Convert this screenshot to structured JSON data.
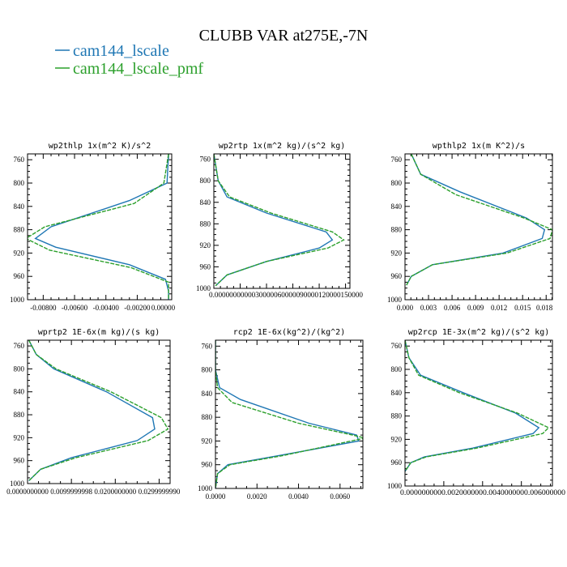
{
  "figure": {
    "title": "CLUBB VAR at275E,-7N",
    "legend": [
      {
        "label": "cam144_lscale",
        "color": "#1f77b4"
      },
      {
        "label": "cam144_lscale_pmf",
        "color": "#2ca02c"
      }
    ]
  },
  "chart_data": [
    {
      "type": "line",
      "title": "wp2thlp  1x(m^2 K)/s^2",
      "xlim": [
        -0.009,
        0.0002
      ],
      "ylim": [
        1000,
        750
      ],
      "x_ticks": [
        -0.008,
        -0.006,
        -0.004,
        -0.002,
        0.0
      ],
      "x_tick_labels": [
        "-0.00800",
        "-0.00600",
        "-0.00400",
        "-0.00200",
        "0.00000"
      ],
      "y_ticks": [
        760,
        800,
        840,
        880,
        920,
        960,
        1000
      ],
      "y_tick_labels": [
        "760",
        "800",
        "840",
        "880",
        "920",
        "960",
        "1000"
      ],
      "series": [
        {
          "name": "cam144_lscale",
          "color": "#1f77b4",
          "dashed": false,
          "x": [
            0.0,
            -0.0001,
            -0.0025,
            -0.0075,
            -0.0085,
            -0.0072,
            -0.0025,
            -0.0002,
            0.0,
            0.0
          ],
          "y": [
            750,
            800,
            830,
            875,
            895,
            910,
            940,
            965,
            985,
            1000
          ]
        },
        {
          "name": "cam144_lscale_pmf",
          "color": "#2ca02c",
          "dashed": true,
          "x": [
            0.0,
            -0.0003,
            -0.0022,
            -0.0079,
            -0.0091,
            -0.0076,
            -0.0024,
            0.0,
            0.0,
            0.0
          ],
          "y": [
            750,
            800,
            835,
            875,
            895,
            915,
            945,
            970,
            985,
            1000
          ]
        }
      ]
    },
    {
      "type": "line",
      "title": "wp2rtp  1x(m^2 kg)/(s^2 kg)",
      "xlim": [
        0,
        1.55e-05
      ],
      "ylim": [
        1000,
        750
      ],
      "x_ticks": [
        0,
        3e-06,
        6e-06,
        9e-06,
        1.2e-05,
        1.5e-05
      ],
      "x_tick_labels": [
        "0.000000",
        "0.000003",
        "0.000006",
        "0.000009",
        "0.000012",
        "0.000015"
      ],
      "x_tick_display": "0.0000000000030000060000090000120000150000",
      "y_ticks": [
        760,
        800,
        840,
        880,
        920,
        960,
        1000
      ],
      "y_tick_labels": [
        "760",
        "800",
        "840",
        "880",
        "920",
        "960",
        "1000"
      ],
      "series": [
        {
          "name": "cam144_lscale",
          "color": "#1f77b4",
          "dashed": false,
          "x": [
            0.0,
            5e-07,
            1.5e-06,
            6e-06,
            1.28e-05,
            1.35e-05,
            1.2e-05,
            6e-06,
            1.5e-06,
            2e-07
          ],
          "y": [
            750,
            800,
            830,
            860,
            895,
            910,
            925,
            950,
            975,
            995
          ]
        },
        {
          "name": "cam144_lscale_pmf",
          "color": "#2ca02c",
          "dashed": true,
          "x": [
            0.0,
            5e-07,
            1.8e-06,
            6.5e-06,
            1.35e-05,
            1.48e-05,
            1.3e-05,
            6e-06,
            1.5e-06,
            2e-07
          ],
          "y": [
            750,
            800,
            830,
            860,
            895,
            910,
            925,
            950,
            975,
            995
          ]
        }
      ]
    },
    {
      "type": "line",
      "title": "wpthlp2  1x(m K^2)/s",
      "xlim": [
        0,
        0.0188
      ],
      "ylim": [
        1000,
        750
      ],
      "x_ticks": [
        0,
        0.003,
        0.006,
        0.009,
        0.012,
        0.015,
        0.018
      ],
      "x_tick_labels": [
        "0.000",
        "0.003",
        "0.006",
        "0.009",
        "0.012",
        "0.015",
        "0.018"
      ],
      "y_ticks": [
        760,
        800,
        840,
        880,
        920,
        960,
        1000
      ],
      "y_tick_labels": [
        "760",
        "800",
        "840",
        "880",
        "920",
        "960",
        "1000"
      ],
      "series": [
        {
          "name": "cam144_lscale",
          "color": "#1f77b4",
          "dashed": false,
          "x": [
            0.0008,
            0.002,
            0.007,
            0.0155,
            0.0178,
            0.0175,
            0.0125,
            0.0035,
            0.0008,
            0.0002
          ],
          "y": [
            750,
            785,
            815,
            860,
            880,
            895,
            920,
            940,
            960,
            975
          ]
        },
        {
          "name": "cam144_lscale_pmf",
          "color": "#2ca02c",
          "dashed": true,
          "x": [
            0.0008,
            0.002,
            0.0065,
            0.0152,
            0.0188,
            0.0185,
            0.013,
            0.0035,
            0.0008,
            0.0002
          ],
          "y": [
            750,
            785,
            820,
            860,
            880,
            895,
            920,
            940,
            960,
            975
          ]
        }
      ]
    },
    {
      "type": "line",
      "title": "wprtp2  1E-6x(m kg)/(s kg)",
      "xlim": [
        0,
        0.0325
      ],
      "ylim": [
        1000,
        750
      ],
      "x_ticks": [
        0,
        0.01,
        0.02,
        0.03
      ],
      "x_tick_labels": [
        "0.0000000000",
        "0.0099999998",
        "0.0200000000",
        "0.0299999990"
      ],
      "y_ticks": [
        760,
        800,
        840,
        880,
        920,
        960,
        1000
      ],
      "y_tick_labels": [
        "760",
        "800",
        "840",
        "880",
        "920",
        "960",
        "1000"
      ],
      "series": [
        {
          "name": "cam144_lscale",
          "color": "#1f77b4",
          "dashed": false,
          "x": [
            0.0003,
            0.002,
            0.006,
            0.018,
            0.0285,
            0.029,
            0.025,
            0.01,
            0.003,
            0.0003
          ],
          "y": [
            750,
            775,
            800,
            840,
            885,
            905,
            925,
            955,
            975,
            995
          ]
        },
        {
          "name": "cam144_lscale_pmf",
          "color": "#2ca02c",
          "dashed": true,
          "x": [
            0.0003,
            0.002,
            0.0065,
            0.019,
            0.0305,
            0.032,
            0.0275,
            0.011,
            0.003,
            0.0003
          ],
          "y": [
            750,
            775,
            800,
            840,
            885,
            905,
            925,
            955,
            975,
            995
          ]
        }
      ]
    },
    {
      "type": "line",
      "title": "rcp2  1E-6x(kg^2)/(kg^2)",
      "xlim": [
        0,
        0.0071
      ],
      "ylim": [
        1000,
        750
      ],
      "x_ticks": [
        0,
        0.002,
        0.004,
        0.006
      ],
      "x_tick_labels": [
        "0.0000",
        "0.0020",
        "0.0040",
        "0.0060"
      ],
      "y_ticks": [
        760,
        800,
        840,
        880,
        920,
        960,
        1000
      ],
      "y_tick_labels": [
        "760",
        "800",
        "840",
        "880",
        "920",
        "960",
        "1000"
      ],
      "series": [
        {
          "name": "cam144_lscale",
          "color": "#1f77b4",
          "dashed": false,
          "x": [
            0.0,
            0.0,
            0.0002,
            0.0012,
            0.0045,
            0.0068,
            0.0069,
            0.003,
            0.0006,
            0.0001,
            0.0
          ],
          "y": [
            750,
            800,
            830,
            850,
            890,
            910,
            920,
            945,
            960,
            975,
            1000
          ]
        },
        {
          "name": "cam144_lscale_pmf",
          "color": "#2ca02c",
          "dashed": true,
          "x": [
            0.0,
            0.0,
            0.0001,
            0.0008,
            0.004,
            0.0066,
            0.0072,
            0.0032,
            0.0007,
            0.0001,
            0.0
          ],
          "y": [
            750,
            800,
            830,
            855,
            890,
            910,
            915,
            945,
            960,
            975,
            1000
          ]
        }
      ]
    },
    {
      "type": "line",
      "title": "wp2rcp  1E-3x(m^2 kg)/(s^2 kg)",
      "xlim": [
        0,
        0.0076
      ],
      "ylim": [
        1000,
        750
      ],
      "x_ticks": [
        0,
        0.002,
        0.004,
        0.006
      ],
      "x_tick_labels": [
        "0.0000000000",
        "0.0020000000",
        "0.0040000000",
        "0.0060000000"
      ],
      "x_tick_display": "0.0000000000.0020000000.0040000000.006000000",
      "y_ticks": [
        760,
        800,
        840,
        880,
        920,
        960,
        1000
      ],
      "y_tick_labels": [
        "760",
        "800",
        "840",
        "880",
        "920",
        "960",
        "1000"
      ],
      "series": [
        {
          "name": "cam144_lscale",
          "color": "#1f77b4",
          "dashed": false,
          "x": [
            0.0,
            0.0002,
            0.0008,
            0.003,
            0.0057,
            0.0069,
            0.0066,
            0.0035,
            0.001,
            0.0003,
            0.0
          ],
          "y": [
            750,
            780,
            810,
            840,
            875,
            900,
            910,
            935,
            950,
            960,
            975
          ]
        },
        {
          "name": "cam144_lscale_pmf",
          "color": "#2ca02c",
          "dashed": true,
          "x": [
            0.0,
            0.0002,
            0.0007,
            0.0028,
            0.0058,
            0.0074,
            0.0071,
            0.0037,
            0.0011,
            0.0003,
            0.0
          ],
          "y": [
            750,
            780,
            810,
            840,
            875,
            900,
            910,
            935,
            950,
            960,
            975
          ]
        }
      ]
    }
  ]
}
